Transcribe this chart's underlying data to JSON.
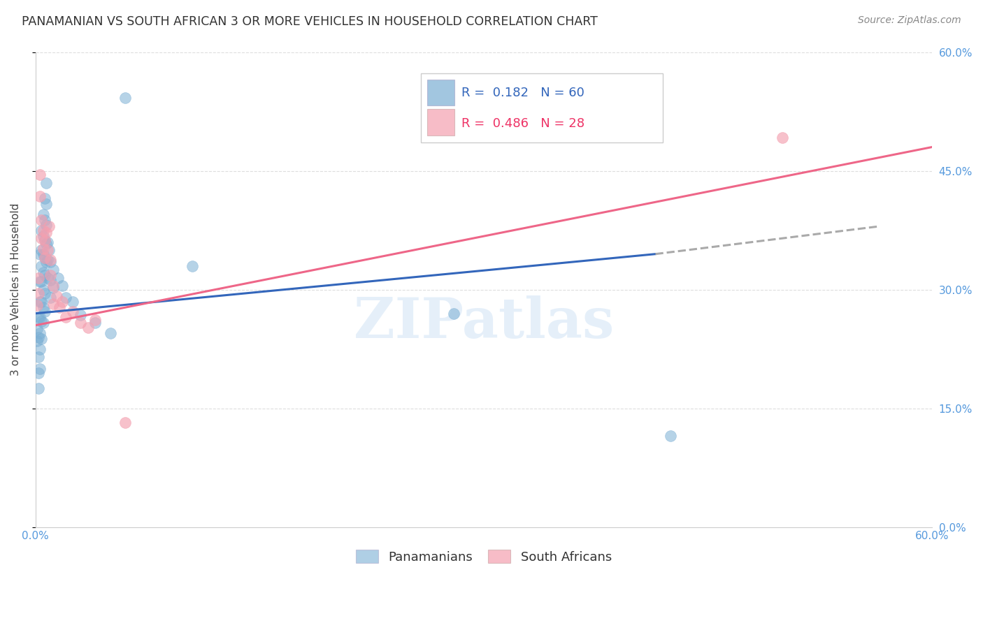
{
  "title": "PANAMANIAN VS SOUTH AFRICAN 3 OR MORE VEHICLES IN HOUSEHOLD CORRELATION CHART",
  "source": "Source: ZipAtlas.com",
  "ylabel": "3 or more Vehicles in Household",
  "xlim": [
    0.0,
    0.6
  ],
  "ylim": [
    0.0,
    0.6
  ],
  "pan_R": 0.182,
  "pan_N": 60,
  "sa_R": 0.486,
  "sa_N": 28,
  "blue_color": "#7BAFD4",
  "pink_color": "#F4A0B0",
  "blue_line_color": "#3366BB",
  "pink_line_color": "#EE6688",
  "dash_color": "#AAAAAA",
  "legend_blue_label": "Panamanians",
  "legend_pink_label": "South Africans",
  "watermark": "ZIPatlas",
  "pan_points": [
    [
      0.001,
      0.25
    ],
    [
      0.001,
      0.235
    ],
    [
      0.002,
      0.265
    ],
    [
      0.002,
      0.24
    ],
    [
      0.002,
      0.215
    ],
    [
      0.002,
      0.195
    ],
    [
      0.002,
      0.175
    ],
    [
      0.003,
      0.345
    ],
    [
      0.003,
      0.31
    ],
    [
      0.003,
      0.285
    ],
    [
      0.003,
      0.265
    ],
    [
      0.003,
      0.245
    ],
    [
      0.003,
      0.225
    ],
    [
      0.003,
      0.2
    ],
    [
      0.004,
      0.375
    ],
    [
      0.004,
      0.35
    ],
    [
      0.004,
      0.33
    ],
    [
      0.004,
      0.31
    ],
    [
      0.004,
      0.285
    ],
    [
      0.004,
      0.26
    ],
    [
      0.004,
      0.238
    ],
    [
      0.005,
      0.395
    ],
    [
      0.005,
      0.368
    ],
    [
      0.005,
      0.345
    ],
    [
      0.005,
      0.322
    ],
    [
      0.005,
      0.3
    ],
    [
      0.005,
      0.278
    ],
    [
      0.005,
      0.258
    ],
    [
      0.006,
      0.415
    ],
    [
      0.006,
      0.388
    ],
    [
      0.006,
      0.362
    ],
    [
      0.006,
      0.34
    ],
    [
      0.006,
      0.318
    ],
    [
      0.006,
      0.295
    ],
    [
      0.006,
      0.272
    ],
    [
      0.007,
      0.435
    ],
    [
      0.007,
      0.408
    ],
    [
      0.007,
      0.382
    ],
    [
      0.007,
      0.358
    ],
    [
      0.007,
      0.335
    ],
    [
      0.008,
      0.36
    ],
    [
      0.008,
      0.338
    ],
    [
      0.008,
      0.315
    ],
    [
      0.009,
      0.35
    ],
    [
      0.01,
      0.335
    ],
    [
      0.01,
      0.312
    ],
    [
      0.01,
      0.29
    ],
    [
      0.012,
      0.325
    ],
    [
      0.012,
      0.302
    ],
    [
      0.015,
      0.315
    ],
    [
      0.018,
      0.305
    ],
    [
      0.02,
      0.29
    ],
    [
      0.025,
      0.285
    ],
    [
      0.03,
      0.268
    ],
    [
      0.04,
      0.258
    ],
    [
      0.05,
      0.245
    ],
    [
      0.06,
      0.542
    ],
    [
      0.105,
      0.33
    ],
    [
      0.28,
      0.27
    ],
    [
      0.425,
      0.115
    ]
  ],
  "sa_points": [
    [
      0.001,
      0.28
    ],
    [
      0.002,
      0.315
    ],
    [
      0.002,
      0.295
    ],
    [
      0.003,
      0.445
    ],
    [
      0.003,
      0.418
    ],
    [
      0.004,
      0.388
    ],
    [
      0.004,
      0.365
    ],
    [
      0.005,
      0.375
    ],
    [
      0.005,
      0.352
    ],
    [
      0.006,
      0.362
    ],
    [
      0.006,
      0.34
    ],
    [
      0.007,
      0.372
    ],
    [
      0.008,
      0.35
    ],
    [
      0.009,
      0.38
    ],
    [
      0.01,
      0.338
    ],
    [
      0.01,
      0.318
    ],
    [
      0.012,
      0.305
    ],
    [
      0.012,
      0.282
    ],
    [
      0.014,
      0.292
    ],
    [
      0.016,
      0.278
    ],
    [
      0.018,
      0.285
    ],
    [
      0.02,
      0.265
    ],
    [
      0.025,
      0.272
    ],
    [
      0.03,
      0.258
    ],
    [
      0.035,
      0.252
    ],
    [
      0.04,
      0.262
    ],
    [
      0.06,
      0.132
    ],
    [
      0.5,
      0.492
    ]
  ]
}
